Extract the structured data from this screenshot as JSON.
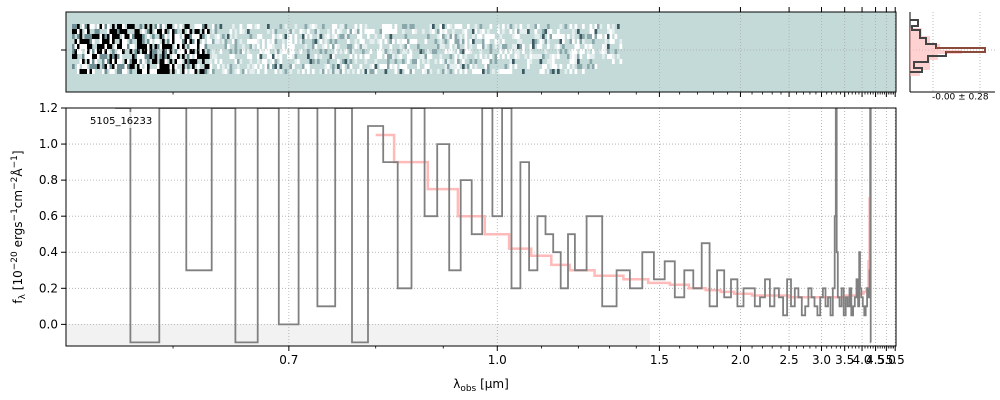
{
  "chart_data": [
    {
      "type": "heatmap",
      "panel": "2d-spectrum",
      "background_color": "#c4dad8",
      "grid": true
    },
    {
      "type": "line",
      "panel": "1d-spectrum",
      "annotation": "5105_16233",
      "xlabel_main": "λ",
      "xlabel_sub": "obs",
      "xlabel_unit": " [μm]",
      "ylabel": "f_λ [10^-20 ergs^-1 cm^-2 Å^-1]",
      "ylabel_parts": {
        "f": "f",
        "lambda": "λ",
        "open": " [10",
        "exp1": "−20",
        "ergs": " ergs",
        "exp2": "−1",
        "cm": "cm",
        "exp3": "−2",
        "A": "Å",
        "exp4": "−1",
        "close": "]"
      },
      "x_scale": "reciprocal",
      "xlim": [
        0.53,
        5.55
      ],
      "ylim": [
        -0.12,
        1.2
      ],
      "xticks": [
        0.7,
        1.0,
        1.5,
        2.0,
        2.5,
        3.0,
        3.5,
        4.0,
        4.5,
        5.0,
        5.5
      ],
      "xtick_labels": [
        "0.7",
        "1.0",
        "1.5",
        "2.0",
        "2.5",
        "3.0",
        "3.5",
        "4.0",
        "4.5",
        "5.0",
        "5.5"
      ],
      "yticks": [
        0.0,
        0.2,
        0.4,
        0.6,
        0.8,
        1.0,
        1.2
      ],
      "ytick_labels": [
        "0.0",
        "0.2",
        "0.4",
        "0.6",
        "0.8",
        "1.0",
        "1.2"
      ],
      "grid": true,
      "series": [
        {
          "role": "data",
          "color": "#808080",
          "x": [
            0.56,
            0.58,
            0.6,
            0.62,
            0.64,
            0.66,
            0.68,
            0.7,
            0.72,
            0.74,
            0.76,
            0.78,
            0.8,
            0.82,
            0.84,
            0.86,
            0.88,
            0.9,
            0.92,
            0.94,
            0.96,
            0.98,
            1.0,
            1.02,
            1.04,
            1.06,
            1.08,
            1.1,
            1.12,
            1.14,
            1.16,
            1.18,
            1.2,
            1.25,
            1.3,
            1.35,
            1.4,
            1.45,
            1.5,
            1.55,
            1.6,
            1.65,
            1.7,
            1.75,
            1.8,
            1.85,
            1.9,
            1.95,
            2.0,
            2.05,
            2.1,
            2.15,
            2.2,
            2.25,
            2.3,
            2.35,
            2.4,
            2.45,
            2.5,
            2.55,
            2.6,
            2.65,
            2.7,
            2.75,
            2.8,
            2.85,
            2.9,
            2.95,
            3.0,
            3.05,
            3.1,
            3.15,
            3.2,
            3.25,
            3.28,
            3.3,
            3.32,
            3.35,
            3.4,
            3.45,
            3.5,
            3.55,
            3.6,
            3.65,
            3.7,
            3.75,
            3.8,
            3.85,
            3.9,
            3.92,
            3.95,
            4.0,
            4.05,
            4.1,
            4.15,
            4.2,
            4.25,
            4.28,
            4.3,
            4.31
          ],
          "y": [
            1.2,
            -0.1,
            1.2,
            0.3,
            1.2,
            -0.1,
            1.2,
            0.0,
            1.2,
            0.1,
            1.2,
            -0.1,
            1.1,
            0.9,
            0.2,
            1.2,
            0.6,
            1.0,
            0.3,
            0.8,
            0.5,
            1.2,
            0.6,
            1.2,
            0.2,
            0.9,
            0.3,
            0.6,
            0.5,
            0.4,
            0.2,
            0.5,
            0.3,
            0.6,
            0.1,
            0.3,
            0.2,
            0.4,
            0.25,
            0.35,
            0.15,
            0.3,
            0.2,
            0.45,
            0.1,
            0.3,
            0.15,
            0.25,
            0.1,
            0.2,
            0.2,
            0.1,
            0.15,
            0.25,
            0.1,
            0.2,
            0.15,
            0.05,
            0.25,
            0.1,
            0.2,
            0.15,
            0.05,
            0.1,
            0.2,
            0.15,
            0.1,
            0.05,
            0.15,
            0.2,
            0.1,
            0.15,
            0.05,
            0.2,
            0.6,
            1.2,
            0.4,
            0.15,
            0.1,
            0.2,
            0.05,
            0.15,
            0.1,
            0.2,
            0.05,
            0.1,
            0.15,
            0.25,
            0.1,
            0.4,
            0.2,
            0.15,
            0.1,
            0.05,
            0.1,
            0.2,
            0.15,
            0.3,
            1.2,
            -0.1
          ]
        },
        {
          "role": "model",
          "color": "#ffb3b3",
          "x": [
            0.8,
            0.85,
            0.9,
            0.95,
            1.0,
            1.05,
            1.1,
            1.15,
            1.2,
            1.3,
            1.4,
            1.5,
            1.6,
            1.7,
            1.8,
            1.9,
            2.0,
            2.2,
            2.4,
            2.6,
            2.8,
            3.0,
            3.2,
            3.4,
            3.6,
            3.8,
            4.0,
            4.1,
            4.2,
            4.25,
            4.28,
            4.3
          ],
          "y": [
            1.05,
            0.9,
            0.75,
            0.6,
            0.5,
            0.42,
            0.38,
            0.33,
            0.3,
            0.27,
            0.25,
            0.23,
            0.22,
            0.2,
            0.19,
            0.18,
            0.17,
            0.16,
            0.16,
            0.15,
            0.15,
            0.15,
            0.15,
            0.15,
            0.16,
            0.16,
            0.17,
            0.18,
            0.2,
            0.35,
            0.7,
            1.2
          ]
        }
      ]
    },
    {
      "type": "bar",
      "panel": "pixel-histogram",
      "annotation": "-0.00 ± 0.28",
      "grid": true
    }
  ]
}
